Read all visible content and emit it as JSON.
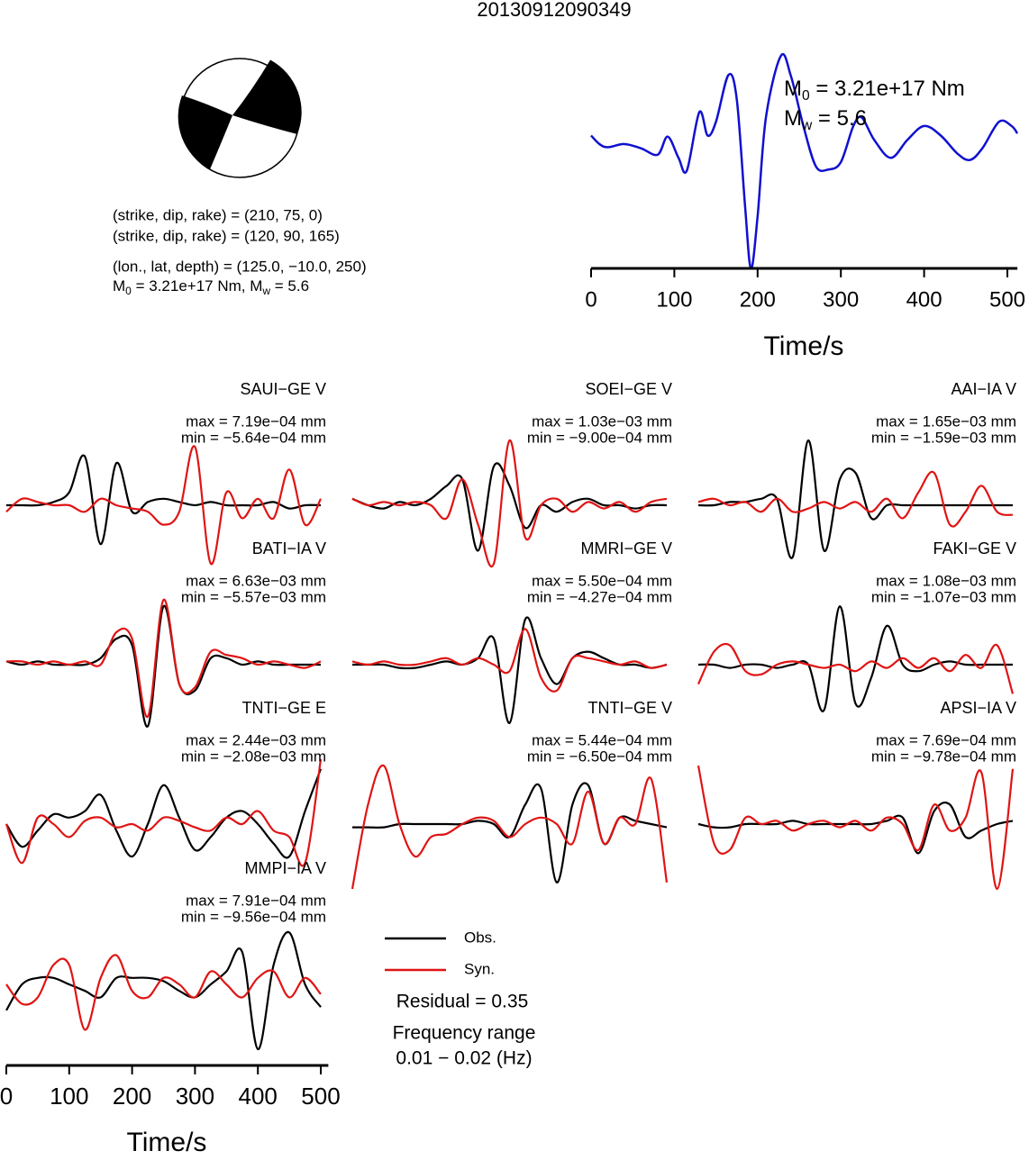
{
  "title": "20130912090349",
  "mechanism": {
    "planes": [
      "(strike, dip, rake) = (210, 75, 0)",
      "(strike, dip, rake) = (120, 90, 165)"
    ],
    "location": "(lon., lat, depth) = (125.0, −10.0, 250)",
    "moment": [
      "M",
      "0",
      " = 3.21e+17 Nm, M",
      "w",
      " = 5.6"
    ]
  },
  "chart_data": [
    {
      "type": "line",
      "color": "#1010d0",
      "x": [
        0,
        10,
        20,
        40,
        60,
        80,
        92,
        105,
        115,
        130,
        140,
        150,
        165,
        175,
        185,
        192,
        200,
        210,
        228,
        240,
        255,
        270,
        285,
        300,
        315,
        325,
        340,
        360,
        380,
        400,
        420,
        440,
        455,
        470,
        490,
        505,
        512
      ],
      "values": [
        0.25,
        0.17,
        0.14,
        0.17,
        0.13,
        0.07,
        0.24,
        0.04,
        -0.08,
        0.47,
        0.25,
        0.38,
        0.82,
        0.59,
        -0.42,
        -1,
        -0.51,
        0.42,
        1,
        0.81,
        0.34,
        -0.04,
        -0.07,
        0,
        0.34,
        0.42,
        0.21,
        0.04,
        0.21,
        0.34,
        0.25,
        0.08,
        0.02,
        0.13,
        0.38,
        0.34,
        0.27
      ],
      "xlim": [
        0,
        512
      ],
      "ylim": [
        -1,
        1
      ],
      "xticks": [
        0,
        100,
        200,
        300,
        400,
        500
      ],
      "xlabel": "Time/s",
      "annotations": [
        [
          "M",
          "0",
          " = 3.21e+17 Nm"
        ],
        [
          "M",
          "w",
          " = 5.6"
        ]
      ]
    },
    {
      "type": "waveforms",
      "x": [
        0,
        25,
        50,
        75,
        100,
        125,
        150,
        175,
        200,
        225,
        250,
        275,
        300,
        325,
        350,
        375,
        400,
        425,
        450,
        475,
        500
      ],
      "xlim": [
        0,
        512
      ],
      "ylim": [
        -1,
        1
      ],
      "xticks": [
        0,
        100,
        200,
        300,
        400,
        500
      ],
      "xlabel": "Time/s",
      "series": [
        {
          "name": "Obs.",
          "color": "#000000"
        },
        {
          "name": "Syn.",
          "color": "#e01414"
        }
      ],
      "panels": [
        {
          "label": "SAUI−GE V",
          "max": "max = 7.19e−04 mm",
          "min": "min = −5.64e−04 mm",
          "obs": [
            0,
            0,
            0,
            0.05,
            0.2,
            0.75,
            -0.6,
            0.65,
            -0.1,
            0.05,
            0.1,
            0.05,
            0,
            0.05,
            0,
            0,
            0,
            0.05,
            -0.05,
            0,
            0
          ],
          "syn": [
            -0.1,
            0.1,
            0.05,
            0,
            0,
            -0.1,
            0.1,
            0,
            -0.05,
            -0.1,
            -0.3,
            -0.1,
            0.9,
            -0.9,
            0.2,
            -0.2,
            0.1,
            -0.2,
            0.55,
            -0.3,
            0.1
          ]
        },
        {
          "label": "SOEI−GE V",
          "max": "max = 1.03e−03 mm",
          "min": "min = −9.00e−04 mm",
          "obs": [
            0.1,
            0,
            -0.05,
            0.05,
            0,
            0.1,
            0.3,
            0.4,
            -0.7,
            0.6,
            0.3,
            -0.35,
            0,
            -0.1,
            0.05,
            0.1,
            0,
            0,
            -0.05,
            0,
            0
          ],
          "syn": [
            0.1,
            0,
            0.05,
            0,
            0.05,
            0,
            -0.2,
            0.4,
            -0.3,
            -0.9,
            1,
            -0.5,
            0,
            0.1,
            -0.1,
            0.05,
            -0.05,
            0.05,
            -0.1,
            0.05,
            0.1
          ]
        },
        {
          "label": "AAI−IA V",
          "max": "max = 1.65e−03 mm",
          "min": "min = −1.59e−03 mm",
          "obs": [
            0,
            0,
            0.05,
            0.05,
            0.1,
            0.1,
            -0.8,
            1,
            -0.7,
            0.4,
            0.5,
            -0.2,
            0,
            0,
            0,
            0,
            0,
            0,
            0,
            0,
            0
          ],
          "syn": [
            0.05,
            0.1,
            0,
            0.05,
            -0.1,
            0.1,
            -0.1,
            -0.05,
            0.05,
            -0.05,
            0.05,
            -0.1,
            0.1,
            -0.2,
            0.2,
            0.5,
            -0.3,
            -0.1,
            0.3,
            -0.1,
            -0.15
          ]
        },
        {
          "label": "BATI−IA V",
          "max": "max = 6.63e−03 mm",
          "min": "min = −5.57e−03 mm",
          "obs": [
            0.05,
            0,
            0.05,
            0,
            0,
            0,
            0.1,
            0.4,
            0.3,
            -0.95,
            0.9,
            -0.3,
            -0.4,
            0.1,
            0.1,
            0,
            0.05,
            0,
            0,
            0,
            0
          ],
          "syn": [
            0.05,
            0.05,
            0,
            0.05,
            0,
            0.05,
            0,
            0.5,
            0.4,
            -0.8,
            1,
            -0.3,
            -0.35,
            0.2,
            0.15,
            0.1,
            0,
            0.05,
            0,
            -0.05,
            0.05
          ]
        },
        {
          "label": "MMRI−GE V",
          "max": "max = 5.50e−04 mm",
          "min": "min = −4.27e−04 mm",
          "obs": [
            0,
            0,
            0,
            -0.05,
            -0.05,
            0,
            0.05,
            0,
            0.1,
            0.4,
            -0.9,
            0.7,
            0.1,
            -0.3,
            0.1,
            0.2,
            0.1,
            0,
            0,
            -0.05,
            0
          ],
          "syn": [
            0.05,
            0,
            0.05,
            0,
            0,
            0.05,
            0.1,
            0,
            0.1,
            0,
            -0.1,
            0.55,
            -0.2,
            -0.4,
            0.1,
            0.1,
            0.05,
            0,
            0.05,
            -0.05,
            0
          ]
        },
        {
          "label": "FAKI−GE V",
          "max": "max = 1.08e−03 mm",
          "min": "min = −1.07e−03 mm",
          "obs": [
            0,
            0,
            -0.05,
            0,
            0,
            -0.05,
            0,
            0,
            -0.7,
            0.9,
            -0.6,
            -0.2,
            0.6,
            0,
            -0.1,
            0,
            0.05,
            0,
            0,
            0,
            0
          ],
          "syn": [
            -0.3,
            0.2,
            0.3,
            -0.1,
            -0.15,
            0,
            0.05,
            0,
            -0.05,
            0,
            -0.1,
            0.05,
            -0.05,
            0.1,
            -0.05,
            0.1,
            -0.1,
            0.15,
            -0.05,
            0.3,
            -0.45
          ]
        },
        {
          "label": "TNTI−GE E",
          "max": "max = 2.44e−03 mm",
          "min": "min = −2.08e−03 mm",
          "obs": [
            0,
            -0.35,
            -0.1,
            0.15,
            0.1,
            0.2,
            0.45,
            -0.1,
            -0.5,
            0,
            0.6,
            0.1,
            -0.4,
            -0.2,
            0.1,
            0.2,
            0,
            -0.3,
            -0.5,
            0.2,
            0.85
          ],
          "syn": [
            0,
            -0.6,
            0.1,
            0,
            -0.2,
            0.05,
            0.1,
            -0.05,
            0,
            -0.1,
            0.1,
            0.05,
            -0.05,
            -0.1,
            0.1,
            0,
            0.2,
            -0.1,
            -0.2,
            -0.6,
            1
          ]
        },
        {
          "label": "TNTI−GE V",
          "max": "max = 5.44e−04 mm",
          "min": "min = −6.50e−04 mm",
          "obs": [
            -0.05,
            -0.05,
            -0.05,
            0,
            0,
            0,
            0,
            0,
            0.05,
            0,
            -0.2,
            0.3,
            0.55,
            -0.9,
            0.3,
            0.6,
            -0.3,
            0.1,
            0.05,
            0,
            -0.05
          ],
          "syn": [
            -1,
            0.3,
            0.9,
            0,
            -0.5,
            -0.2,
            -0.15,
            0,
            0.1,
            0.05,
            -0.2,
            0,
            0.1,
            0,
            -0.3,
            0.5,
            -0.3,
            0.1,
            0,
            0.7,
            -0.9
          ]
        },
        {
          "label": "APSI−IA V",
          "max": "max = 7.69e−04 mm",
          "min": "min = −9.78e−04 mm",
          "obs": [
            0,
            -0.05,
            -0.05,
            0,
            0,
            0,
            0.05,
            0,
            0,
            0,
            0,
            0,
            0.05,
            0.1,
            -0.45,
            0.2,
            0.3,
            -0.2,
            -0.1,
            0,
            0.05
          ],
          "syn": [
            0.9,
            -0.3,
            -0.4,
            0.1,
            0,
            0.05,
            -0.1,
            0,
            0.05,
            -0.05,
            0.05,
            -0.1,
            0.1,
            0,
            -0.4,
            0.3,
            -0.1,
            0.1,
            0.8,
            -1,
            0.85
          ]
        },
        {
          "label": "MMPI−IA V",
          "max": "max = 7.91e−04 mm",
          "min": "min = −9.56e−04 mm",
          "obs": [
            -0.4,
            0,
            0.1,
            0.1,
            0,
            -0.1,
            -0.2,
            0.1,
            0.1,
            0.1,
            0.05,
            -0.1,
            -0.2,
            0,
            0.2,
            0.5,
            -1,
            0.3,
            0.8,
            0,
            -0.35
          ],
          "syn": [
            0,
            -0.3,
            -0.2,
            0.3,
            0.3,
            -0.7,
            0.1,
            0.45,
            -0.1,
            -0.2,
            0.1,
            0,
            -0.2,
            0.2,
            0,
            -0.2,
            0.1,
            0.2,
            -0.2,
            0.1,
            -0.15
          ]
        }
      ]
    }
  ],
  "notes": {
    "residual": "Residual = 0.35",
    "frequency": [
      "Frequency range",
      "0.01 − 0.02 (Hz)"
    ]
  }
}
